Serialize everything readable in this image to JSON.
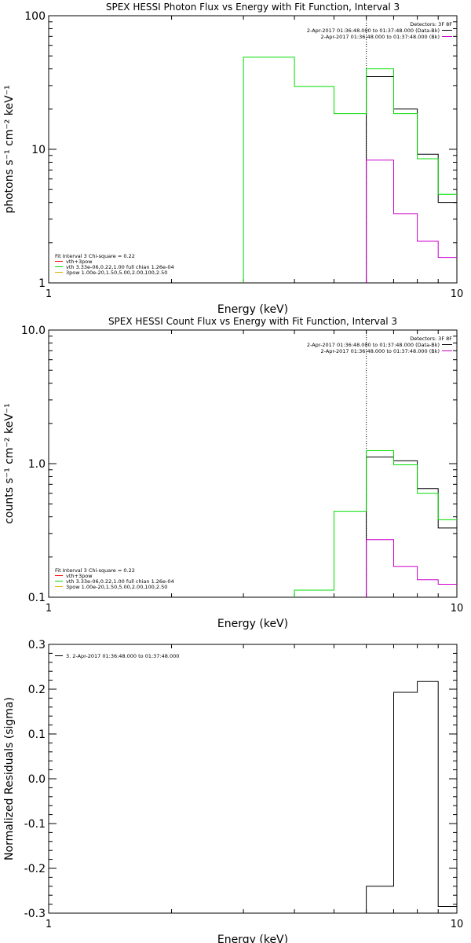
{
  "chart_data": [
    {
      "type": "line",
      "title": "SPEX HESSI Photon Flux vs Energy with Fit Function, Interval 3",
      "xlabel": "Energy (keV)",
      "ylabel": "photons s⁻¹ cm⁻² keV⁻¹",
      "xscale": "log",
      "yscale": "log",
      "xlim": [
        1,
        10
      ],
      "ylim": [
        1,
        100
      ],
      "xticks": [
        1,
        10
      ],
      "xtick_labels": [
        "1",
        "10"
      ],
      "yticks": [
        1,
        10,
        100
      ],
      "ytick_labels": [
        "1",
        "10",
        "100"
      ],
      "vline": 6,
      "legend_right": {
        "title": "Detectors: 3F 8F",
        "entries": [
          {
            "text": "2-Apr-2017 01:36:48.000 to 01:37:48.000 (Data-Bk)",
            "color": "#000000"
          },
          {
            "text": "2-Apr-2017 01:36:48.000 to 01:37:48.000 (Bk)",
            "color": "#cc00cc"
          }
        ]
      },
      "legend_left": {
        "title": "Fit Interval 3   Chi-square = 0.22",
        "entries": [
          {
            "text": "vth+3pow",
            "color": "#ff0000"
          },
          {
            "text": "vth 3.33e-06,0.22,1.00  full chian 1.26e-04",
            "color": "#00dd00"
          },
          {
            "text": "3pow 1.00e-20,1.50,5.00,2.00,100,2.50",
            "color": "#e0b000"
          }
        ]
      },
      "series": [
        {
          "name": "Data-Bk",
          "color": "#000000",
          "edges": [
            6,
            7,
            8,
            9,
            10
          ],
          "values": [
            35,
            20,
            9.2,
            4.0
          ]
        },
        {
          "name": "Bk",
          "color": "#cc00cc",
          "edges": [
            6,
            7,
            8,
            9,
            10
          ],
          "values": [
            8.3,
            3.3,
            2.05,
            1.55
          ]
        },
        {
          "name": "vth",
          "color": "#00dd00",
          "edges": [
            3,
            4,
            5,
            6,
            7,
            8,
            9,
            10
          ],
          "values": [
            49,
            29.5,
            18.5,
            40,
            18.5,
            8.5,
            4.6
          ]
        }
      ]
    },
    {
      "type": "line",
      "title": "SPEX HESSI Count Flux vs Energy with Fit Function, Interval 3",
      "xlabel": "Energy (keV)",
      "ylabel": "counts s⁻¹ cm⁻² keV⁻¹",
      "xscale": "log",
      "yscale": "log",
      "xlim": [
        1,
        10
      ],
      "ylim": [
        0.1,
        10
      ],
      "xticks": [
        1,
        10
      ],
      "xtick_labels": [
        "1",
        "10"
      ],
      "yticks": [
        0.1,
        1,
        10
      ],
      "ytick_labels": [
        "0.1",
        "1.0",
        "10.0"
      ],
      "vline": 6,
      "legend_right": {
        "title": "Detectors: 3F 8F",
        "entries": [
          {
            "text": "2-Apr-2017 01:36:48.000 to 01:37:48.000 (Data-Bk)",
            "color": "#000000"
          },
          {
            "text": "2-Apr-2017 01:36:48.000 to 01:37:48.000 (Bk)",
            "color": "#cc00cc"
          }
        ]
      },
      "legend_left": {
        "title": "Fit Interval 3   Chi-square = 0.22",
        "entries": [
          {
            "text": "vth+3pow",
            "color": "#ff0000"
          },
          {
            "text": "vth 3.33e-06,0.22,1.00  full chian 1.26e-04",
            "color": "#00dd00"
          },
          {
            "text": "3pow 1.00e-20,1.50,5.00,2.00,100,2.50",
            "color": "#e0b000"
          }
        ]
      },
      "series": [
        {
          "name": "Data-Bk",
          "color": "#000000",
          "edges": [
            6,
            7,
            8,
            9,
            10
          ],
          "values": [
            1.12,
            1.05,
            0.65,
            0.33
          ]
        },
        {
          "name": "Bk",
          "color": "#cc00cc",
          "edges": [
            6,
            7,
            8,
            9,
            10
          ],
          "values": [
            0.27,
            0.17,
            0.135,
            0.125
          ]
        },
        {
          "name": "vth",
          "color": "#00dd00",
          "edges": [
            4,
            5,
            6,
            7,
            8,
            9,
            10
          ],
          "values": [
            0.113,
            0.44,
            1.25,
            0.98,
            0.6,
            0.38
          ]
        }
      ]
    },
    {
      "type": "line",
      "title": "",
      "xlabel": "Energy (keV)",
      "ylabel": "Normalized Residuals (sigma)",
      "xscale": "log",
      "yscale": "linear",
      "xlim": [
        1,
        10
      ],
      "ylim": [
        -0.3,
        0.3
      ],
      "xticks": [
        1,
        10
      ],
      "xtick_labels": [
        "1",
        "10"
      ],
      "yticks": [
        -0.3,
        -0.2,
        -0.1,
        0.0,
        0.1,
        0.2,
        0.3
      ],
      "ytick_labels": [
        "-0.3",
        "-0.2",
        "-0.1",
        "0.0",
        "0.1",
        "0.2",
        "0.3"
      ],
      "legend_left": {
        "title": "",
        "entries": [
          {
            "text": "3. 2-Apr-2017 01:36:48.000 to 01:37:48.000",
            "color": "#000000"
          }
        ]
      },
      "series": [
        {
          "name": "",
          "color": "#000000",
          "edges": [
            6,
            7,
            8,
            9,
            10
          ],
          "values": [
            -0.24,
            0.193,
            0.217,
            -0.285
          ]
        }
      ]
    }
  ]
}
